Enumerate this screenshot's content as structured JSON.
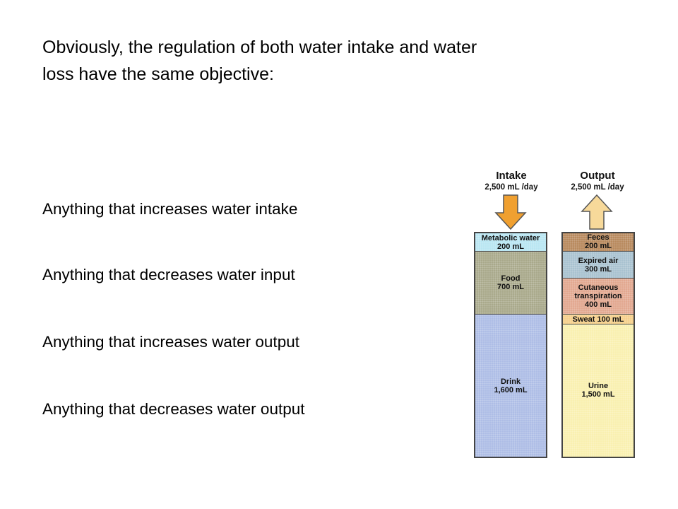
{
  "intro": {
    "line1": "Obviously, the regulation of both water intake and water",
    "line2": "loss have the same objective:"
  },
  "statements": [
    "Anything that increases water intake",
    "Anything that decreases water input",
    "Anything that increases water output",
    "Anything that decreases water output"
  ],
  "diagram": {
    "intake": {
      "title": "Intake",
      "rate": "2,500 mL /day",
      "arrow_color": "#f0a030",
      "segments": [
        {
          "name": "Metabolic water",
          "amount": "200 mL",
          "value_ml": 200,
          "color": "#b9e6f2"
        },
        {
          "name": "Food",
          "amount": "700 mL",
          "value_ml": 700,
          "color": "#a9a98b"
        },
        {
          "name": "Drink",
          "amount": "1,600 mL",
          "value_ml": 1600,
          "color": "#aebde6"
        }
      ]
    },
    "output": {
      "title": "Output",
      "rate": "2,500 mL /day",
      "arrow_color": "#f7d99a",
      "segments": [
        {
          "name": "Feces",
          "amount": "200 mL",
          "value_ml": 200,
          "color": "#b88a5e"
        },
        {
          "name": "Expired air",
          "amount": "300 mL",
          "value_ml": 300,
          "color": "#a9c2d0"
        },
        {
          "name": "Cutaneous transpiration",
          "amount": "400 mL",
          "value_ml": 400,
          "color": "#e2a890"
        },
        {
          "name": "Sweat 100 mL",
          "amount": "",
          "value_ml": 100,
          "color": "#f6d08c"
        },
        {
          "name": "Urine",
          "amount": "1,500 mL",
          "value_ml": 1500,
          "color": "#f9f0b0"
        }
      ]
    }
  }
}
